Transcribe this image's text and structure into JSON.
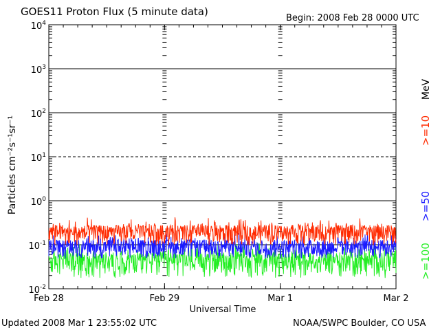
{
  "header": {
    "title": "GOES11 Proton Flux (5 minute data)",
    "begin": "Begin: 2008 Feb 28 0000 UTC"
  },
  "footer": {
    "updated": "Updated 2008 Mar  1 23:55:02 UTC",
    "source": "NOAA/SWPC Boulder, CO USA"
  },
  "chart_data": {
    "type": "line",
    "ylabel": "Particles cm⁻²s⁻¹sr⁻¹",
    "xlabel": "Universal Time",
    "yscale": "log",
    "ylim": [
      0.01,
      10000
    ],
    "yticks": [
      {
        "base": "10",
        "exp": "4",
        "value": 10000
      },
      {
        "base": "10",
        "exp": "3",
        "value": 1000
      },
      {
        "base": "10",
        "exp": "2",
        "value": 100
      },
      {
        "base": "10",
        "exp": "1",
        "value": 10
      },
      {
        "base": "10",
        "exp": "0",
        "value": 1
      },
      {
        "base": "10",
        "exp": "-1",
        "value": 0.1
      },
      {
        "base": "10",
        "exp": "-2",
        "value": 0.01
      }
    ],
    "xlim": [
      0,
      3
    ],
    "xticks": [
      {
        "label": "Feb 28",
        "value": 0
      },
      {
        "label": "Feb 29",
        "value": 1
      },
      {
        "label": "Mar 1",
        "value": 2
      },
      {
        "label": "Mar 2",
        "value": 3
      }
    ],
    "unit_label": "MeV",
    "series": [
      {
        "name": ">=10",
        "color": "#ff2a00",
        "base": 0.18,
        "noise": 0.09
      },
      {
        "name": ">=50",
        "color": "#1a1aff",
        "base": 0.085,
        "noise": 0.04
      },
      {
        "name": ">=100",
        "color": "#22ee22",
        "base": 0.04,
        "noise": 0.025
      }
    ],
    "grid": "solid at 1e3, 1e2, 1, 0.1; dashed at 10"
  }
}
